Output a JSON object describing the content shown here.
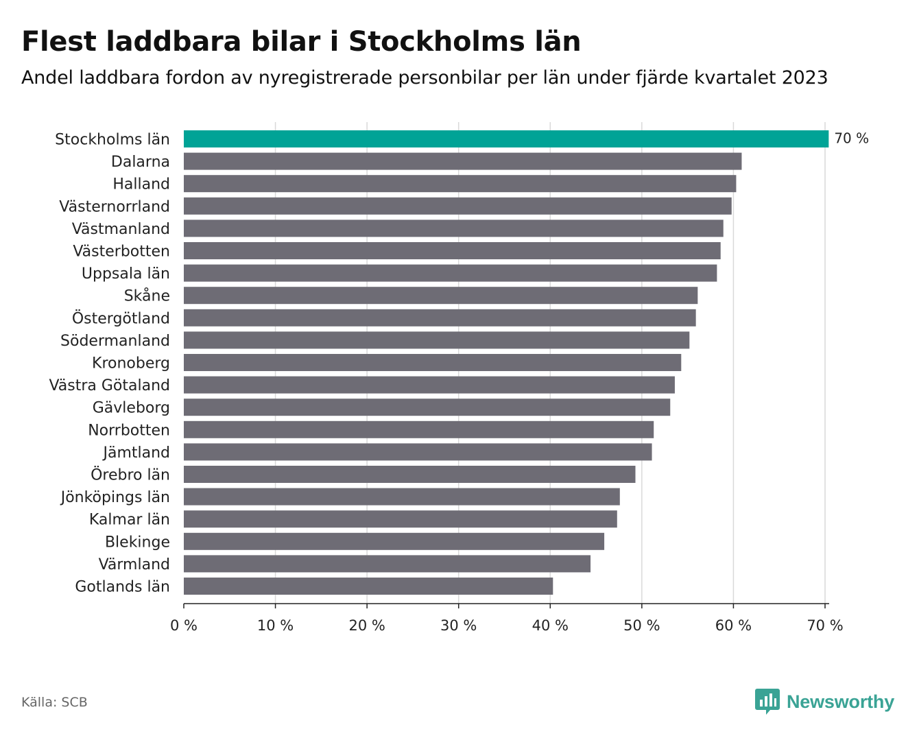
{
  "header": {
    "title": "Flest laddbara bilar i Stockholms län",
    "subtitle": "Andel laddbara fordon av nyregistrerade personbilar per län under fjärde kvartalet 2023"
  },
  "footer": {
    "source": "Källa: SCB",
    "brand": "Newsworthy"
  },
  "colors": {
    "highlight": "#00a396",
    "bar": "#6e6c75",
    "grid": "#d9d9d9",
    "axis": "#222222",
    "brand": "#3aa395"
  },
  "chart_data": {
    "type": "bar",
    "orientation": "horizontal",
    "title": "Flest laddbara bilar i Stockholms län",
    "subtitle": "Andel laddbara fordon av nyregistrerade personbilar per län under fjärde kvartalet 2023",
    "xlabel": "",
    "ylabel": "",
    "xlim": [
      0,
      70
    ],
    "grid": true,
    "ticks": [
      {
        "value": 0,
        "label": "0 %"
      },
      {
        "value": 10,
        "label": "10 %"
      },
      {
        "value": 20,
        "label": "20 %"
      },
      {
        "value": 30,
        "label": "30 %"
      },
      {
        "value": 40,
        "label": "40 %"
      },
      {
        "value": 50,
        "label": "50 %"
      },
      {
        "value": 60,
        "label": "60 %"
      },
      {
        "value": 70,
        "label": "70 %"
      }
    ],
    "categories": [
      "Stockholms län",
      "Dalarna",
      "Halland",
      "Västernorrland",
      "Västmanland",
      "Västerbotten",
      "Uppsala län",
      "Skåne",
      "Östergötland",
      "Södermanland",
      "Kronoberg",
      "Västra Götaland",
      "Gävleborg",
      "Norrbotten",
      "Jämtland",
      "Örebro län",
      "Jönköpings län",
      "Kalmar län",
      "Blekinge",
      "Värmland",
      "Gotlands län"
    ],
    "values": [
      70.4,
      60.9,
      60.3,
      59.8,
      58.9,
      58.6,
      58.2,
      56.1,
      55.9,
      55.2,
      54.3,
      53.6,
      53.1,
      51.3,
      51.1,
      49.3,
      47.6,
      47.3,
      45.9,
      44.4,
      40.3
    ],
    "highlight": "Stockholms län",
    "annotations": [
      {
        "category": "Stockholms län",
        "text": "70 %"
      }
    ]
  }
}
